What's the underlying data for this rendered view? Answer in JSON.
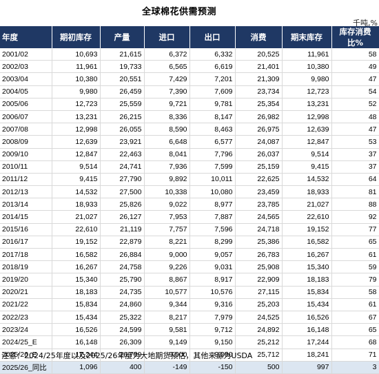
{
  "title": "全球棉花供需预测",
  "unit": "千吨,%",
  "columns": [
    "年度",
    "期初库存",
    "产量",
    "进口",
    "出口",
    "消费",
    "期末库存",
    "库存消费比%"
  ],
  "rows": [
    [
      "2001/02",
      "10,693",
      "21,615",
      "6,372",
      "6,332",
      "20,525",
      "11,961",
      "58"
    ],
    [
      "2002/03",
      "11,961",
      "19,733",
      "6,565",
      "6,619",
      "21,401",
      "10,380",
      "49"
    ],
    [
      "2003/04",
      "10,380",
      "20,551",
      "7,429",
      "7,201",
      "21,309",
      "9,980",
      "47"
    ],
    [
      "2004/05",
      "9,980",
      "26,459",
      "7,390",
      "7,609",
      "23,734",
      "12,723",
      "54"
    ],
    [
      "2005/06",
      "12,723",
      "25,559",
      "9,721",
      "9,781",
      "25,354",
      "13,231",
      "52"
    ],
    [
      "2006/07",
      "13,231",
      "26,215",
      "8,336",
      "8,147",
      "26,982",
      "12,998",
      "48"
    ],
    [
      "2007/08",
      "12,998",
      "26,055",
      "8,590",
      "8,463",
      "26,975",
      "12,639",
      "47"
    ],
    [
      "2008/09",
      "12,639",
      "23,921",
      "6,648",
      "6,577",
      "24,087",
      "12,847",
      "53"
    ],
    [
      "2009/10",
      "12,847",
      "22,463",
      "8,041",
      "7,796",
      "26,037",
      "9,514",
      "37"
    ],
    [
      "2010/11",
      "9,514",
      "24,741",
      "7,936",
      "7,599",
      "25,159",
      "9,415",
      "37"
    ],
    [
      "2011/12",
      "9,415",
      "27,790",
      "9,892",
      "10,011",
      "22,625",
      "14,532",
      "64"
    ],
    [
      "2012/13",
      "14,532",
      "27,500",
      "10,338",
      "10,080",
      "23,459",
      "18,933",
      "81"
    ],
    [
      "2013/14",
      "18,933",
      "25,826",
      "9,022",
      "8,977",
      "23,785",
      "21,027",
      "88"
    ],
    [
      "2014/15",
      "21,027",
      "26,127",
      "7,953",
      "7,887",
      "24,565",
      "22,610",
      "92"
    ],
    [
      "2015/16",
      "22,610",
      "21,119",
      "7,757",
      "7,596",
      "24,718",
      "19,152",
      "77"
    ],
    [
      "2016/17",
      "19,152",
      "22,879",
      "8,221",
      "8,299",
      "25,386",
      "16,582",
      "65"
    ],
    [
      "2017/18",
      "16,582",
      "26,884",
      "9,000",
      "9,057",
      "26,783",
      "16,267",
      "61"
    ],
    [
      "2018/19",
      "16,267",
      "24,758",
      "9,226",
      "9,031",
      "25,908",
      "15,340",
      "59"
    ],
    [
      "2019/20",
      "15,340",
      "25,790",
      "8,867",
      "8,917",
      "22,909",
      "18,183",
      "79"
    ],
    [
      "2020/21",
      "18,183",
      "24,735",
      "10,577",
      "10,576",
      "27,115",
      "15,834",
      "58"
    ],
    [
      "2021/22",
      "15,834",
      "24,860",
      "9,344",
      "9,316",
      "25,203",
      "15,434",
      "61"
    ],
    [
      "2022/23",
      "15,434",
      "25,322",
      "8,217",
      "7,979",
      "24,525",
      "16,526",
      "67"
    ],
    [
      "2023/24",
      "16,526",
      "24,599",
      "9,581",
      "9,712",
      "24,892",
      "16,148",
      "65"
    ],
    [
      "2024/25_E",
      "16,148",
      "26,309",
      "9,149",
      "9,150",
      "25,212",
      "17,244",
      "68"
    ],
    [
      "2025/26_E",
      "17,244",
      "26,709",
      "9,000",
      "9,000",
      "25,712",
      "18,241",
      "71"
    ],
    [
      "2025/26_同比",
      "1,096",
      "400",
      "-149",
      "-150",
      "500",
      "997",
      "3"
    ]
  ],
  "note": "注意：2024/25年度以及2025/26年度为大地期货预估，其他来源为USDA",
  "colors": {
    "header_bg": "#1f3864",
    "header_text": "#ffffff",
    "last_row_bg": "#dce6f1",
    "grid": "#d9d9d9"
  }
}
